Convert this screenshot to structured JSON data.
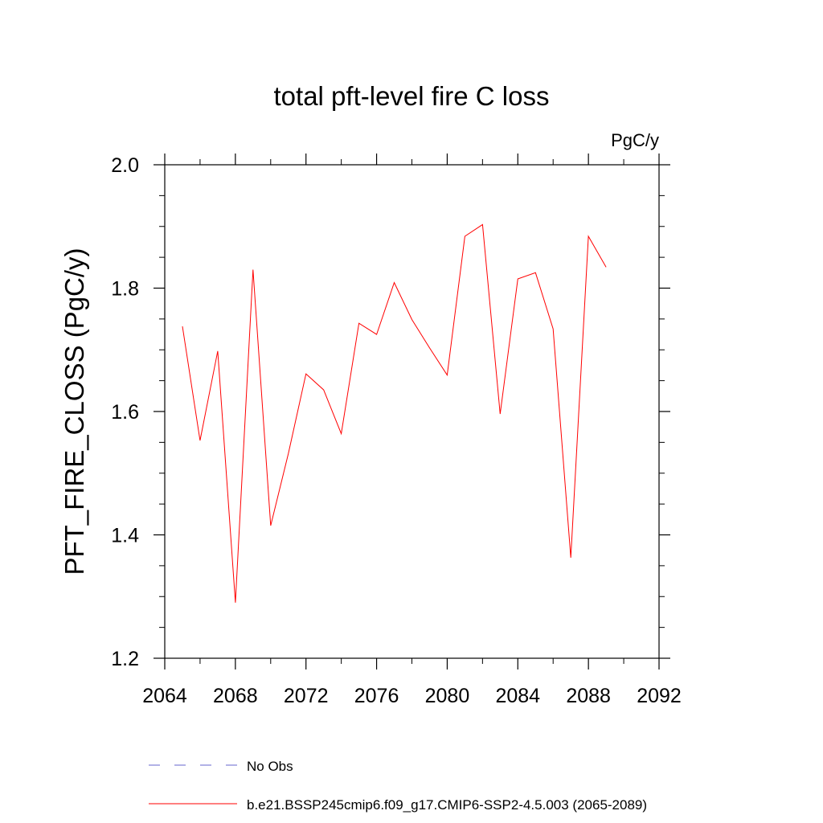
{
  "chart_data": {
    "type": "line",
    "title": "total pft-level fire C loss",
    "units_label": "PgC/y",
    "ylabel": "PFT_FIRE_CLOSS  (PgC/y)",
    "xlabel": "",
    "xlim": [
      2064,
      2092
    ],
    "ylim": [
      1.2,
      2.0
    ],
    "x_ticks": [
      2064,
      2068,
      2072,
      2076,
      2080,
      2084,
      2088,
      2092
    ],
    "x_tick_labels": [
      "2064",
      "2068",
      "2072",
      "2076",
      "2080",
      "2084",
      "2088",
      "2092"
    ],
    "x_minor_step": 2,
    "y_ticks": [
      1.2,
      1.4,
      1.6,
      1.8,
      2.0
    ],
    "y_tick_labels": [
      "1.2",
      "1.4",
      "1.6",
      "1.8",
      "2.0"
    ],
    "y_minor_step": 0.05,
    "grid": false,
    "legend_position": "bottom",
    "series": [
      {
        "name": "b.e21.BSSP245cmip6.f09_g17.CMIP6-SSP2-4.5.003 (2065-2089)",
        "color": "#ff0000",
        "x": [
          2065,
          2066,
          2067,
          2068,
          2069,
          2070,
          2071,
          2072,
          2073,
          2074,
          2075,
          2076,
          2077,
          2078,
          2079,
          2080,
          2081,
          2082,
          2083,
          2084,
          2085,
          2086,
          2087,
          2088,
          2089
        ],
        "values": [
          1.738,
          1.553,
          1.698,
          1.29,
          1.83,
          1.415,
          1.532,
          1.661,
          1.635,
          1.564,
          1.743,
          1.725,
          1.809,
          1.749,
          1.703,
          1.659,
          1.884,
          1.903,
          1.596,
          1.815,
          1.825,
          1.734,
          1.363,
          1.884,
          1.834
        ]
      }
    ],
    "legend": [
      {
        "label": "No Obs",
        "color": "#6666cc",
        "style": "dashed"
      },
      {
        "label": "b.e21.BSSP245cmip6.f09_g17.CMIP6-SSP2-4.5.003 (2065-2089)",
        "color": "#ff0000",
        "style": "solid"
      }
    ]
  }
}
